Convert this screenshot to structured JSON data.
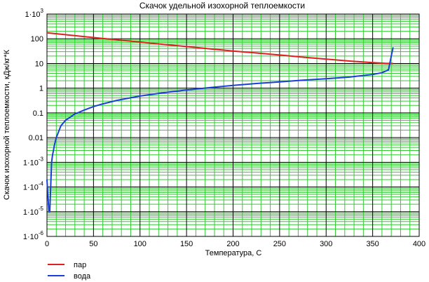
{
  "chart_data": {
    "type": "line",
    "title": "Скачок удельной изохорной теплоемкости",
    "xlabel": "Температура, С",
    "ylabel": "Скачок изохорной теплоемкости, кДж/кг*К",
    "xlim": [
      0,
      400
    ],
    "ylim": [
      1e-06,
      1000
    ],
    "yscale": "log",
    "x_ticks": [
      "0",
      "50",
      "100",
      "150",
      "200",
      "250",
      "300",
      "350",
      "400"
    ],
    "y_ticks": [
      {
        "mantissa": "1·10",
        "exp": "-6"
      },
      {
        "mantissa": "1·10",
        "exp": "-5"
      },
      {
        "mantissa": "1·10",
        "exp": "-4"
      },
      {
        "mantissa": "1·10",
        "exp": "-3"
      },
      {
        "mantissa": "0.01",
        "exp": ""
      },
      {
        "mantissa": "0.1",
        "exp": ""
      },
      {
        "mantissa": "1",
        "exp": ""
      },
      {
        "mantissa": "10",
        "exp": ""
      },
      {
        "mantissa": "100",
        "exp": ""
      },
      {
        "mantissa": "1·10",
        "exp": "3"
      }
    ],
    "grid": true,
    "grid_color": "#33cc33",
    "legend_position": "bottom-left",
    "series": [
      {
        "name": "пар",
        "color": "#e02020",
        "x": [
          0,
          25,
          50,
          75,
          100,
          125,
          150,
          175,
          200,
          225,
          250,
          275,
          300,
          325,
          350,
          365,
          372
        ],
        "y": [
          175,
          140,
          112,
          90,
          73,
          59,
          48,
          39,
          32,
          26.5,
          22,
          18,
          15,
          12.5,
          10.8,
          10,
          10
        ]
      },
      {
        "name": "вода",
        "color": "#1a3fd8",
        "x": [
          0.01,
          1,
          2,
          3,
          4,
          5,
          6,
          7,
          8,
          10,
          15,
          20,
          30,
          40,
          50,
          60,
          75,
          100,
          125,
          150,
          175,
          200,
          225,
          250,
          275,
          300,
          325,
          350,
          360,
          367,
          370,
          372
        ],
        "y": [
          0.0002,
          5e-05,
          1e-05,
          1e-05,
          0.0001,
          0.001,
          0.002,
          0.003,
          0.005,
          0.01,
          0.03,
          0.05,
          0.09,
          0.13,
          0.18,
          0.23,
          0.32,
          0.48,
          0.65,
          0.85,
          1.05,
          1.3,
          1.55,
          1.8,
          2.1,
          2.4,
          2.8,
          3.6,
          4.2,
          5.5,
          20,
          45
        ]
      }
    ]
  }
}
